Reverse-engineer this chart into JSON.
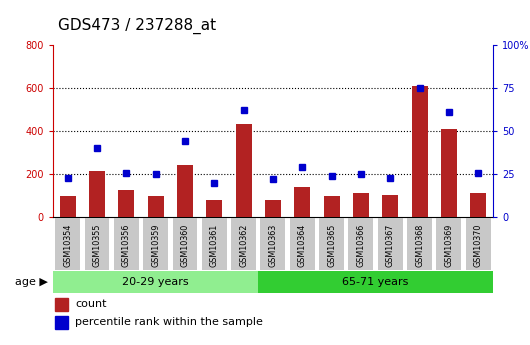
{
  "title": "GDS473 / 237288_at",
  "samples": [
    "GSM10354",
    "GSM10355",
    "GSM10356",
    "GSM10359",
    "GSM10360",
    "GSM10361",
    "GSM10362",
    "GSM10363",
    "GSM10364",
    "GSM10365",
    "GSM10366",
    "GSM10367",
    "GSM10368",
    "GSM10369",
    "GSM10370"
  ],
  "counts": [
    100,
    215,
    125,
    100,
    245,
    80,
    435,
    80,
    140,
    100,
    115,
    105,
    610,
    410,
    115
  ],
  "percentiles": [
    23,
    40,
    26,
    25,
    44,
    20,
    62,
    22,
    29,
    24,
    25,
    23,
    75,
    61,
    26
  ],
  "group1_label": "20-29 years",
  "group2_label": "65-71 years",
  "group1_count": 7,
  "group2_count": 8,
  "group1_color": "#90EE90",
  "group2_color": "#32CD32",
  "bar_color": "#B22222",
  "dot_color": "#0000CD",
  "left_axis_color": "#CC0000",
  "right_axis_color": "#0000CD",
  "ylim_left": [
    0,
    800
  ],
  "ylim_right": [
    0,
    100
  ],
  "left_ticks": [
    0,
    200,
    400,
    600,
    800
  ],
  "right_ticks": [
    0,
    25,
    50,
    75,
    100
  ],
  "right_tick_labels": [
    "0",
    "25",
    "50",
    "75",
    "100%"
  ],
  "legend_count_label": "count",
  "legend_pct_label": "percentile rank within the sample",
  "age_label": "age",
  "xlabel_bg": "#C8C8C8",
  "grid_color": "black",
  "title_fontsize": 11,
  "tick_fontsize": 7,
  "bar_width": 0.55,
  "dot_size": 5
}
